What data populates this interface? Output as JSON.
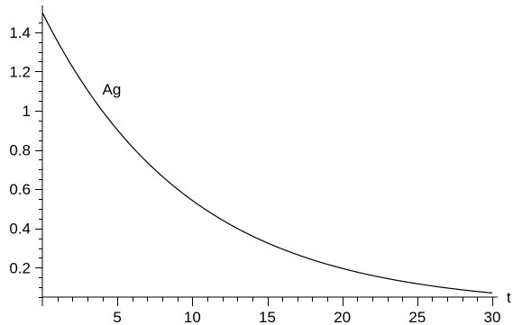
{
  "chart_data": {
    "type": "line",
    "title": "",
    "xlabel": "t",
    "ylabel": "",
    "xlim": [
      0,
      30
    ],
    "ylim": [
      0.05,
      1.5
    ],
    "x_ticks": [
      5,
      10,
      15,
      20,
      25,
      30
    ],
    "x_tick_labels": [
      "5",
      "10",
      "15",
      "20",
      "25",
      "30"
    ],
    "y_ticks": [
      0.2,
      0.4,
      0.6,
      0.8,
      1.0,
      1.2,
      1.4
    ],
    "y_tick_labels": [
      "0.2",
      "0.4",
      "0.6",
      "0.8",
      "1",
      "1.2",
      "1.4"
    ],
    "grid": false,
    "legend": "none",
    "series": [
      {
        "name": "Ag",
        "x": [
          0,
          1,
          2,
          3,
          4,
          5,
          6,
          7,
          8,
          9,
          10,
          11,
          12,
          13,
          14,
          15,
          16,
          17,
          18,
          19,
          20,
          21,
          22,
          23,
          24,
          25,
          26,
          27,
          28,
          29,
          30
        ],
        "y": [
          1.5,
          1.355,
          1.224,
          1.106,
          0.999,
          0.903,
          0.815,
          0.737,
          0.665,
          0.601,
          0.543,
          0.491,
          0.443,
          0.401,
          0.362,
          0.327,
          0.295,
          0.267,
          0.241,
          0.218,
          0.197,
          0.178,
          0.161,
          0.145,
          0.131,
          0.118,
          0.107,
          0.097,
          0.087,
          0.079,
          0.071
        ]
      }
    ],
    "annotations": [
      {
        "text": "Ag",
        "x": 4.0,
        "y": 1.1
      }
    ]
  }
}
